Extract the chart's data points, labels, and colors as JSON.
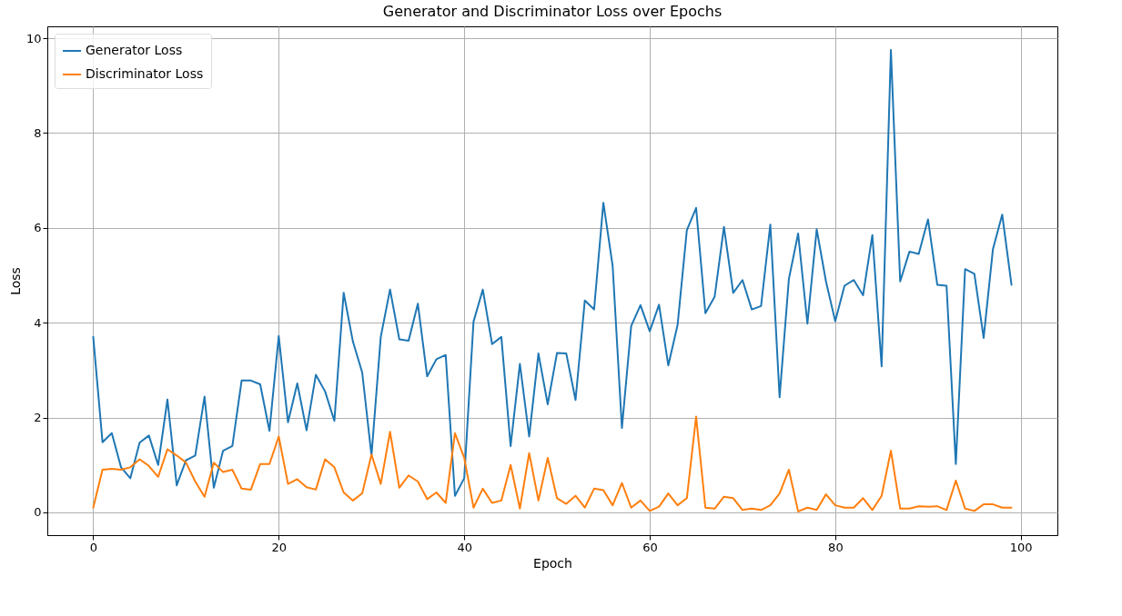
{
  "chart_data": {
    "type": "line",
    "title": "Generator and Discriminator Loss over Epochs",
    "xlabel": "Epoch",
    "ylabel": "Loss",
    "x": [
      0,
      1,
      2,
      3,
      4,
      5,
      6,
      7,
      8,
      9,
      10,
      11,
      12,
      13,
      14,
      15,
      16,
      17,
      18,
      19,
      20,
      21,
      22,
      23,
      24,
      25,
      26,
      27,
      28,
      29,
      30,
      31,
      32,
      33,
      34,
      35,
      36,
      37,
      38,
      39,
      40,
      41,
      42,
      43,
      44,
      45,
      46,
      47,
      48,
      49,
      50,
      51,
      52,
      53,
      54,
      55,
      56,
      57,
      58,
      59,
      60,
      61,
      62,
      63,
      64,
      65,
      66,
      67,
      68,
      69,
      70,
      71,
      72,
      73,
      74,
      75,
      76,
      77,
      78,
      79,
      80,
      81,
      82,
      83,
      84,
      85,
      86,
      87,
      88,
      89,
      90,
      91,
      92,
      93,
      94,
      95,
      96,
      97,
      98,
      99
    ],
    "series": [
      {
        "name": "Generator Loss",
        "color": "#1f77b4",
        "values": [
          3.7,
          1.48,
          1.67,
          0.95,
          0.72,
          1.47,
          1.62,
          1.0,
          2.38,
          0.57,
          1.1,
          1.2,
          2.44,
          0.52,
          1.3,
          1.4,
          2.78,
          2.78,
          2.7,
          1.72,
          3.72,
          1.9,
          2.72,
          1.73,
          2.9,
          2.55,
          1.93,
          4.63,
          3.6,
          2.95,
          1.2,
          3.7,
          4.7,
          3.65,
          3.62,
          4.4,
          2.87,
          3.23,
          3.32,
          0.35,
          0.72,
          4.02,
          4.7,
          3.55,
          3.7,
          1.4,
          3.13,
          1.6,
          3.35,
          2.28,
          3.36,
          3.35,
          2.37,
          4.47,
          4.28,
          6.53,
          5.2,
          1.78,
          3.93,
          4.37,
          3.82,
          4.38,
          3.1,
          3.95,
          5.95,
          6.42,
          4.2,
          4.55,
          6.02,
          4.63,
          4.9,
          4.28,
          4.35,
          6.07,
          2.43,
          4.92,
          5.88,
          3.98,
          5.97,
          4.87,
          4.03,
          4.78,
          4.9,
          4.58,
          5.85,
          3.08,
          9.75,
          4.87,
          5.5,
          5.45,
          6.18,
          4.8,
          4.78,
          1.02,
          5.13,
          5.03,
          3.68,
          5.55,
          6.28,
          4.8
        ]
      },
      {
        "name": "Discriminator Loss",
        "color": "#ff7f0e",
        "values": [
          0.1,
          0.9,
          0.92,
          0.9,
          0.95,
          1.12,
          0.98,
          0.75,
          1.33,
          1.2,
          1.05,
          0.65,
          0.33,
          1.05,
          0.85,
          0.9,
          0.5,
          0.48,
          1.02,
          1.02,
          1.6,
          0.6,
          0.7,
          0.53,
          0.48,
          1.12,
          0.95,
          0.42,
          0.25,
          0.4,
          1.22,
          0.6,
          1.7,
          0.52,
          0.78,
          0.65,
          0.28,
          0.42,
          0.2,
          1.67,
          1.15,
          0.1,
          0.5,
          0.2,
          0.25,
          1.0,
          0.08,
          1.25,
          0.25,
          1.15,
          0.3,
          0.18,
          0.35,
          0.1,
          0.5,
          0.47,
          0.15,
          0.62,
          0.1,
          0.25,
          0.03,
          0.12,
          0.4,
          0.15,
          0.3,
          2.02,
          0.1,
          0.08,
          0.33,
          0.3,
          0.05,
          0.08,
          0.05,
          0.15,
          0.4,
          0.9,
          0.02,
          0.1,
          0.05,
          0.38,
          0.15,
          0.1,
          0.1,
          0.3,
          0.05,
          0.35,
          1.3,
          0.08,
          0.08,
          0.13,
          0.12,
          0.13,
          0.05,
          0.67,
          0.08,
          0.03,
          0.17,
          0.17,
          0.1,
          0.1
        ]
      }
    ],
    "xlim": [
      -4.95,
      103.95
    ],
    "ylim": [
      -0.48,
      10.25
    ],
    "xticks": [
      0,
      20,
      40,
      60,
      80,
      100
    ],
    "yticks": [
      0,
      2,
      4,
      6,
      8,
      10
    ],
    "grid": true,
    "legend": "top left",
    "marker": "none",
    "line_style": "solid"
  }
}
